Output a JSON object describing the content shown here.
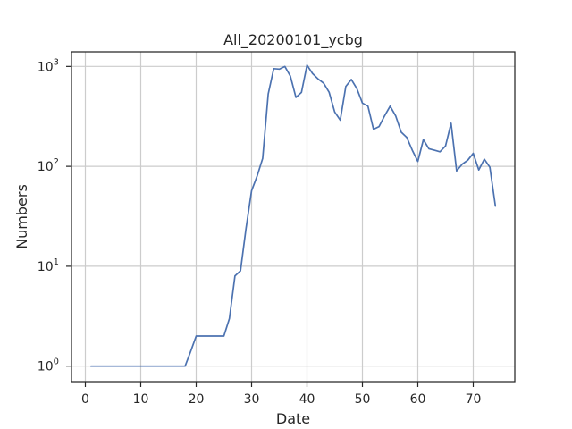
{
  "chart_data": {
    "type": "line",
    "title": "All_20200101_ycbg",
    "xlabel": "Date",
    "ylabel": "Numbers",
    "xlim": [
      -2.5,
      77.5
    ],
    "ylim": [
      0.7,
      1400
    ],
    "yscale": "log",
    "grid": true,
    "x_ticks": [
      0,
      10,
      20,
      30,
      40,
      50,
      60,
      70
    ],
    "x_tick_labels": [
      "0",
      "10",
      "20",
      "30",
      "40",
      "50",
      "60",
      "70"
    ],
    "y_ticks": [
      1,
      10,
      100,
      1000
    ],
    "y_tick_labels": [
      [
        "10",
        "0"
      ],
      [
        "10",
        "1"
      ],
      [
        "10",
        "2"
      ],
      [
        "10",
        "3"
      ]
    ],
    "series": [
      {
        "color": "#4c72b0",
        "x": [
          1,
          2,
          3,
          4,
          5,
          6,
          7,
          8,
          9,
          10,
          11,
          12,
          13,
          14,
          15,
          16,
          17,
          18,
          19,
          20,
          21,
          22,
          23,
          24,
          25,
          26,
          27,
          28,
          29,
          30,
          31,
          32,
          33,
          34,
          35,
          36,
          37,
          38,
          39,
          40,
          41,
          42,
          43,
          44,
          45,
          46,
          47,
          48,
          49,
          50,
          51,
          52,
          53,
          54,
          55,
          56,
          57,
          58,
          59,
          60,
          61,
          62,
          63,
          64,
          65,
          66,
          67,
          68,
          69,
          70,
          71,
          72,
          73,
          74
        ],
        "y": [
          1,
          1,
          1,
          1,
          1,
          1,
          1,
          1,
          1,
          1,
          1,
          1,
          1,
          1,
          1,
          1,
          1,
          1,
          1.4,
          2,
          2,
          2,
          2,
          2,
          2,
          3,
          8,
          9,
          24,
          57,
          80,
          120,
          530,
          950,
          940,
          1000,
          800,
          490,
          550,
          1030,
          850,
          750,
          680,
          550,
          350,
          290,
          630,
          740,
          600,
          430,
          400,
          235,
          250,
          320,
          400,
          320,
          220,
          195,
          145,
          112,
          185,
          150,
          145,
          140,
          160,
          270,
          90,
          105,
          115,
          135,
          92,
          118,
          98,
          40
        ]
      }
    ]
  }
}
